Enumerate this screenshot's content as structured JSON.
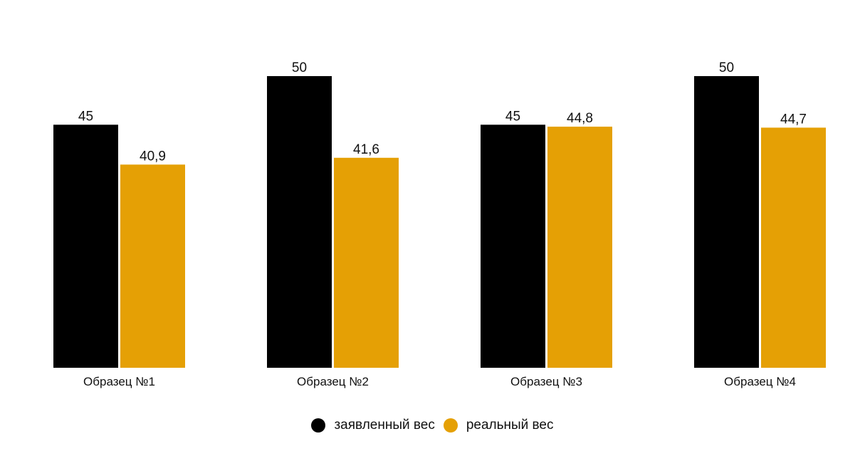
{
  "chart_data": {
    "type": "bar",
    "title": "",
    "xlabel": "",
    "ylabel": "",
    "categories": [
      "Образец №1",
      "Образец №2",
      "Образец №3",
      "Образец №4"
    ],
    "series": [
      {
        "name": "заявленный вес",
        "color": "#000000",
        "values": [
          45,
          50,
          45,
          50
        ],
        "labels": [
          "45",
          "50",
          "45",
          "50"
        ]
      },
      {
        "name": "реальный вес",
        "color": "#e5a005",
        "values": [
          40.9,
          41.6,
          44.8,
          44.7
        ],
        "labels": [
          "40,9",
          "41,6",
          "44,8",
          "44,7"
        ]
      }
    ],
    "value_axis_visible": false,
    "grid": false,
    "legend_position": "bottom-center"
  }
}
